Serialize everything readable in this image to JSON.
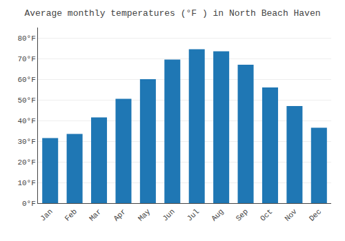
{
  "chart_data": {
    "type": "bar",
    "title": "Average monthly temperatures (°F ) in North Beach Haven",
    "categories": [
      "Jan",
      "Feb",
      "Mar",
      "Apr",
      "May",
      "Jun",
      "Jul",
      "Aug",
      "Sep",
      "Oct",
      "Nov",
      "Dec"
    ],
    "values": [
      31.5,
      33.5,
      41.5,
      50.5,
      60.0,
      69.5,
      74.5,
      73.5,
      67.0,
      56.0,
      47.0,
      36.5
    ],
    "ylim": [
      0,
      85
    ],
    "yticks": [
      {
        "value": 0,
        "label": "0°F"
      },
      {
        "value": 10,
        "label": "10°F"
      },
      {
        "value": 20,
        "label": "20°F"
      },
      {
        "value": 30,
        "label": "30°F"
      },
      {
        "value": 40,
        "label": "40°F"
      },
      {
        "value": 50,
        "label": "50°F"
      },
      {
        "value": 60,
        "label": "60°F"
      },
      {
        "value": 70,
        "label": "70°F"
      },
      {
        "value": 80,
        "label": "80°F"
      }
    ],
    "grid": true
  }
}
